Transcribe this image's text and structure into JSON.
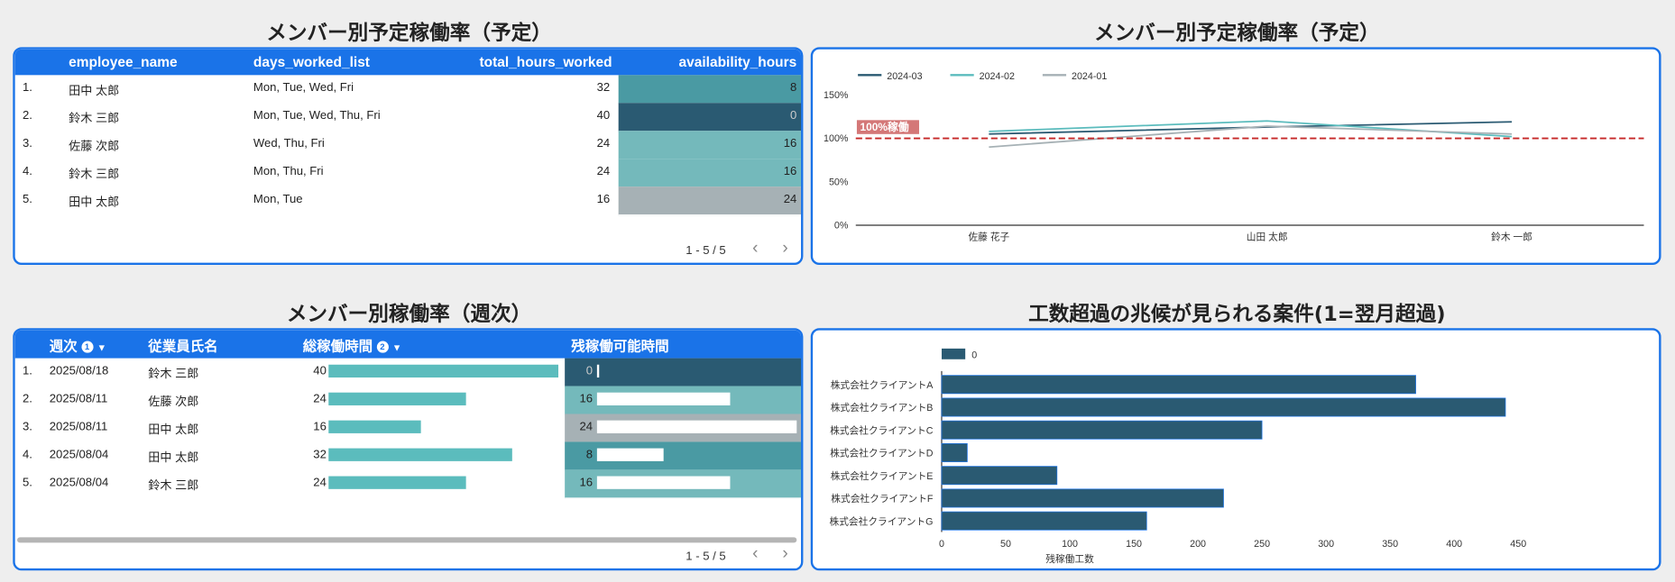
{
  "panels": {
    "top_left": {
      "title": "メンバー別予定稼働率（予定）",
      "columns": [
        "employee_name",
        "days_worked_list",
        "total_hours_worked",
        "availability_hours"
      ],
      "rows": [
        {
          "idx": "1.",
          "name": "田中 太郎",
          "days": "Mon, Tue, Wed, Fri",
          "total": "32",
          "avail": "8",
          "color": "#4a9aa3"
        },
        {
          "idx": "2.",
          "name": "鈴木 三郎",
          "days": "Mon, Tue, Wed, Thu, Fri",
          "total": "40",
          "avail": "0",
          "color": "#2a5a72"
        },
        {
          "idx": "3.",
          "name": "佐藤 次郎",
          "days": "Wed, Thu, Fri",
          "total": "24",
          "avail": "16",
          "color": "#74b9bb"
        },
        {
          "idx": "4.",
          "name": "鈴木 三郎",
          "days": "Mon, Thu, Fri",
          "total": "24",
          "avail": "16",
          "color": "#74b9bb"
        },
        {
          "idx": "5.",
          "name": "田中 太郎",
          "days": "Mon, Tue",
          "total": "16",
          "avail": "24",
          "color": "#a6b1b5"
        }
      ],
      "pager": "1 - 5 / 5",
      "prev_icon": "‹",
      "next_icon": "›"
    },
    "top_right": {
      "title": "メンバー別予定稼働率（予定）",
      "reference_label": "100%稼働"
    },
    "bottom_left": {
      "title": "メンバー別稼働率（週次）",
      "columns": [
        "週次",
        "従業員氏名",
        "総稼働時間",
        "残稼働可能時間"
      ],
      "sort_badges": [
        "1",
        "2"
      ],
      "rows": [
        {
          "idx": "1.",
          "week": "2025/08/18",
          "name": "鈴木 三郎",
          "total": 40,
          "remain": 0,
          "color": "#2a5a72"
        },
        {
          "idx": "2.",
          "week": "2025/08/11",
          "name": "佐藤 次郎",
          "total": 24,
          "remain": 16,
          "color": "#74b9bb"
        },
        {
          "idx": "3.",
          "week": "2025/08/11",
          "name": "田中 太郎",
          "total": 16,
          "remain": 24,
          "color": "#a6b1b5"
        },
        {
          "idx": "4.",
          "week": "2025/08/04",
          "name": "田中 太郎",
          "total": 32,
          "remain": 8,
          "color": "#4a9aa3"
        },
        {
          "idx": "5.",
          "week": "2025/08/04",
          "name": "鈴木 三郎",
          "total": 24,
          "remain": 16,
          "color": "#74b9bb"
        }
      ],
      "pager": "1 - 5 / 5",
      "prev_icon": "‹",
      "next_icon": "›"
    },
    "bottom_right": {
      "title": "工数超過の兆候が見られる案件(1=翌月超過)"
    }
  },
  "chart_data": [
    {
      "type": "line",
      "categories": [
        "佐藤 花子",
        "山田 太郎",
        "鈴木 一郎"
      ],
      "series": [
        {
          "name": "2024-03",
          "values": [
            105,
            113,
            119
          ],
          "color": "#2a5a72"
        },
        {
          "name": "2024-02",
          "values": [
            108,
            120,
            102
          ],
          "color": "#5bbcbd"
        },
        {
          "name": "2024-01",
          "values": [
            90,
            114,
            105
          ],
          "color": "#a6b1b5"
        }
      ],
      "yticks": [
        "0%",
        "50%",
        "100%",
        "150%"
      ],
      "ylim": [
        0,
        150
      ],
      "reference_line": {
        "value": 100,
        "label": "100%稼働",
        "color": "#c62828"
      },
      "legend": "top-left"
    },
    {
      "type": "bar",
      "orientation": "horizontal",
      "categories": [
        "株式会社クライアントA",
        "株式会社クライアントB",
        "株式会社クライアントC",
        "株式会社クライアントD",
        "株式会社クライアントE",
        "株式会社クライアントF",
        "株式会社クライアントG"
      ],
      "series": [
        {
          "name": "0",
          "values": [
            370,
            440,
            250,
            20,
            90,
            220,
            160
          ],
          "color": "#2a5a72"
        }
      ],
      "xticks": [
        "0",
        "50",
        "100",
        "150",
        "200",
        "250",
        "300",
        "350",
        "400",
        "450"
      ],
      "xlim": [
        0,
        450
      ],
      "xlabel": "残稼働工数",
      "legend": "top-left"
    }
  ]
}
